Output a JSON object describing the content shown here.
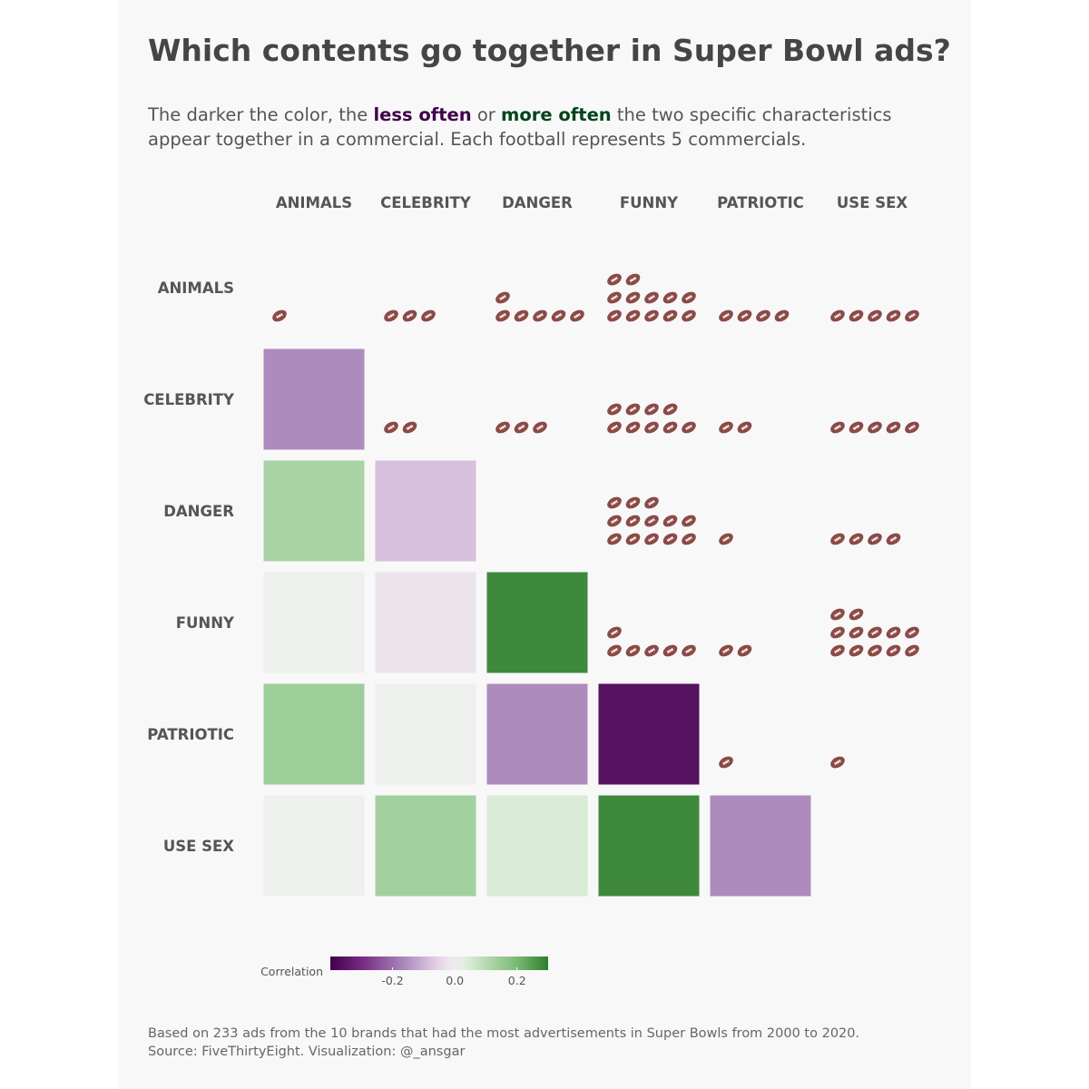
{
  "title": "Which contents go together in Super Bowl ads?",
  "subtitle": {
    "part1": "The darker the color, the ",
    "less": "less often",
    "part2": " or ",
    "more": "more often",
    "part3": " the two specific characteristics appear together in a commercial. Each football represents 5 commercials."
  },
  "colors": {
    "less_often": "#40004b",
    "more_often": "#00441b",
    "football": "#8b4a47"
  },
  "chart_data": {
    "type": "heatmap",
    "categories": [
      "ANIMALS",
      "CELEBRITY",
      "DANGER",
      "FUNNY",
      "PATRIOTIC",
      "USE SEX"
    ],
    "correlations": [
      {
        "row": "CELEBRITY",
        "col": "ANIMALS",
        "value": -0.16
      },
      {
        "row": "DANGER",
        "col": "ANIMALS",
        "value": 0.12
      },
      {
        "row": "DANGER",
        "col": "CELEBRITY",
        "value": -0.08
      },
      {
        "row": "FUNNY",
        "col": "ANIMALS",
        "value": 0.0
      },
      {
        "row": "FUNNY",
        "col": "CELEBRITY",
        "value": -0.02
      },
      {
        "row": "FUNNY",
        "col": "DANGER",
        "value": 0.28
      },
      {
        "row": "PATRIOTIC",
        "col": "ANIMALS",
        "value": 0.14
      },
      {
        "row": "PATRIOTIC",
        "col": "CELEBRITY",
        "value": 0.0
      },
      {
        "row": "PATRIOTIC",
        "col": "DANGER",
        "value": -0.16
      },
      {
        "row": "PATRIOTIC",
        "col": "FUNNY",
        "value": -0.36
      },
      {
        "row": "USE SEX",
        "col": "ANIMALS",
        "value": 0.0
      },
      {
        "row": "USE SEX",
        "col": "CELEBRITY",
        "value": 0.13
      },
      {
        "row": "USE SEX",
        "col": "DANGER",
        "value": 0.05
      },
      {
        "row": "USE SEX",
        "col": "FUNNY",
        "value": 0.28
      },
      {
        "row": "USE SEX",
        "col": "PATRIOTIC",
        "value": -0.16
      }
    ],
    "football_counts": [
      {
        "row": "ANIMALS",
        "col": "ANIMALS",
        "footballs": 1
      },
      {
        "row": "ANIMALS",
        "col": "CELEBRITY",
        "footballs": 3
      },
      {
        "row": "ANIMALS",
        "col": "DANGER",
        "footballs": 6
      },
      {
        "row": "ANIMALS",
        "col": "FUNNY",
        "footballs": 12
      },
      {
        "row": "ANIMALS",
        "col": "PATRIOTIC",
        "footballs": 4
      },
      {
        "row": "ANIMALS",
        "col": "USE SEX",
        "footballs": 5
      },
      {
        "row": "CELEBRITY",
        "col": "CELEBRITY",
        "footballs": 2
      },
      {
        "row": "CELEBRITY",
        "col": "DANGER",
        "footballs": 3
      },
      {
        "row": "CELEBRITY",
        "col": "FUNNY",
        "footballs": 9
      },
      {
        "row": "CELEBRITY",
        "col": "PATRIOTIC",
        "footballs": 2
      },
      {
        "row": "CELEBRITY",
        "col": "USE SEX",
        "footballs": 5
      },
      {
        "row": "DANGER",
        "col": "FUNNY",
        "footballs": 13
      },
      {
        "row": "DANGER",
        "col": "PATRIOTIC",
        "footballs": 1
      },
      {
        "row": "DANGER",
        "col": "USE SEX",
        "footballs": 4
      },
      {
        "row": "FUNNY",
        "col": "FUNNY",
        "footballs": 6
      },
      {
        "row": "FUNNY",
        "col": "PATRIOTIC",
        "footballs": 2
      },
      {
        "row": "FUNNY",
        "col": "USE SEX",
        "footballs": 12
      },
      {
        "row": "PATRIOTIC",
        "col": "PATRIOTIC",
        "footballs": 1
      },
      {
        "row": "PATRIOTIC",
        "col": "USE SEX",
        "footballs": 1
      }
    ],
    "legend": {
      "title": "Correlation",
      "range": [
        -0.4,
        0.3
      ],
      "ticks": [
        -0.2,
        0.0,
        0.2
      ],
      "tick_labels": [
        "-0.2",
        "0.0",
        "0.2"
      ],
      "placement": "bottom-left"
    }
  },
  "footer": {
    "line1": "Based on 233 ads from the 10 brands that had the most advertisements in Super Bowls from 2000 to 2020.",
    "line2": "Source: FiveThirtyEight. Visualization: @_ansgar"
  }
}
